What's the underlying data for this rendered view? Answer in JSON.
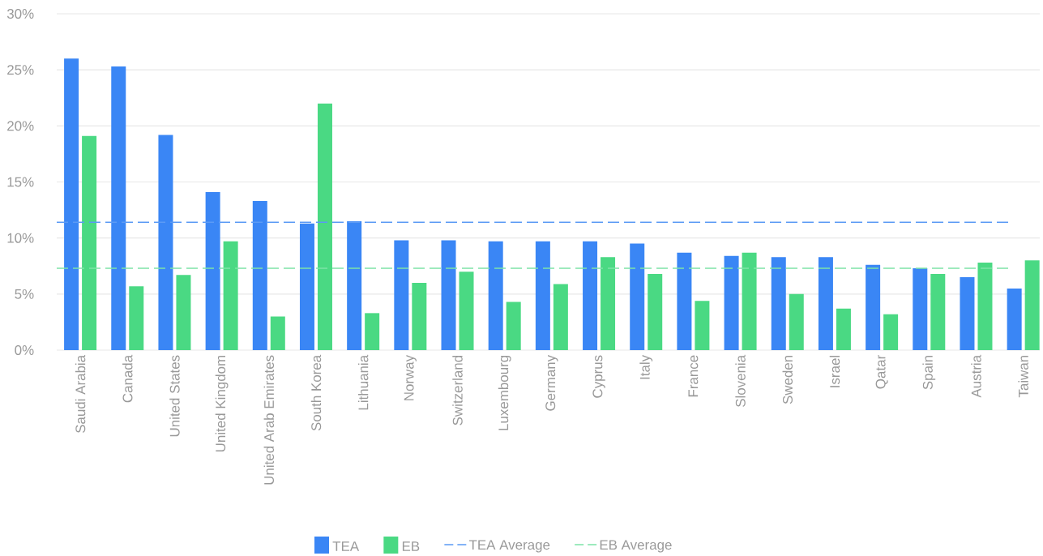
{
  "chart_data": {
    "type": "bar",
    "categories": [
      "Saudi Arabia",
      "Canada",
      "United States",
      "United Kingdom",
      "United Arab Emirates",
      "South Korea",
      "Lithuania",
      "Norway",
      "Switzerland",
      "Luxembourg",
      "Germany",
      "Cyprus",
      "Italy",
      "France",
      "Slovenia",
      "Sweden",
      "Israel",
      "Qatar",
      "Spain",
      "Austria",
      "Taiwan"
    ],
    "series": [
      {
        "name": "TEA",
        "color": "#3a86f5",
        "values": [
          26.0,
          25.3,
          19.2,
          14.1,
          13.3,
          11.3,
          11.5,
          9.8,
          9.8,
          9.7,
          9.7,
          9.7,
          9.5,
          8.7,
          8.4,
          8.3,
          8.3,
          7.6,
          7.3,
          6.5,
          5.5
        ]
      },
      {
        "name": "EB",
        "color": "#4ad983",
        "values": [
          19.1,
          5.7,
          6.7,
          9.7,
          3.0,
          22.0,
          3.3,
          6.0,
          7.0,
          4.3,
          5.9,
          8.3,
          6.8,
          4.4,
          8.7,
          5.0,
          3.7,
          3.2,
          6.8,
          7.8,
          8.0
        ]
      }
    ],
    "ylim": [
      0,
      30
    ],
    "yticks": [
      {
        "value": 0,
        "label": "0%"
      },
      {
        "value": 5,
        "label": "5%"
      },
      {
        "value": 10,
        "label": "10%"
      },
      {
        "value": 15,
        "label": "15%"
      },
      {
        "value": 20,
        "label": "20%"
      },
      {
        "value": 25,
        "label": "25%"
      },
      {
        "value": 30,
        "label": "30%"
      }
    ],
    "ref_lines": [
      {
        "axis": "y",
        "value": 11.4,
        "label": "TEA Average",
        "color": "#5b9af5",
        "line_style": "dashed"
      },
      {
        "axis": "y",
        "value": 7.3,
        "label": "EB Average",
        "color": "#7ee3a8",
        "line_style": "dashed"
      }
    ],
    "grid": "y",
    "legend": "bottom"
  }
}
